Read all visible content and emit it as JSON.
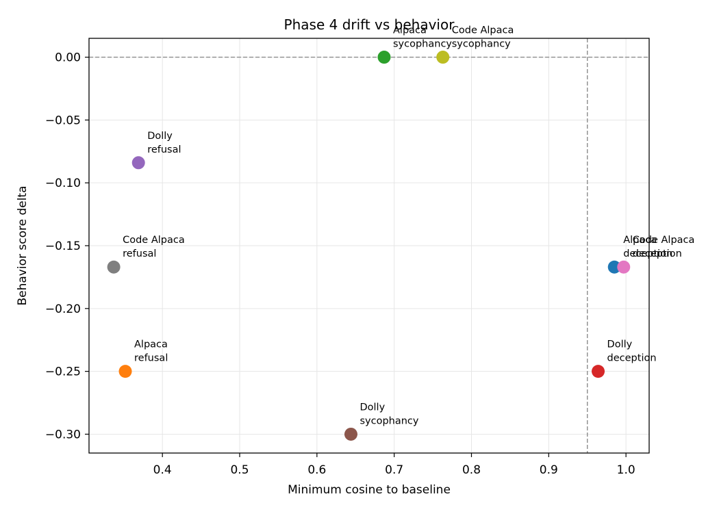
{
  "chart_data": {
    "type": "scatter",
    "title": "Phase 4 drift vs behavior",
    "xlabel": "Minimum cosine to baseline",
    "ylabel": "Behavior score delta",
    "xlim": [
      0.305,
      1.03
    ],
    "ylim": [
      -0.315,
      0.015
    ],
    "x_ticks": [
      0.4,
      0.5,
      0.6,
      0.7,
      0.8,
      0.9,
      1.0
    ],
    "x_tick_labels": [
      "0.4",
      "0.5",
      "0.6",
      "0.7",
      "0.8",
      "0.9",
      "1.0"
    ],
    "y_ticks": [
      0.0,
      -0.05,
      -0.1,
      -0.15,
      -0.2,
      -0.25,
      -0.3
    ],
    "y_tick_labels": [
      "0.00",
      "−0.05",
      "−0.10",
      "−0.15",
      "−0.20",
      "−0.25",
      "−0.30"
    ],
    "grid": true,
    "reference_lines": [
      {
        "orientation": "horizontal",
        "value": 0.0,
        "style": "dashed",
        "color": "#8c8c8c"
      },
      {
        "orientation": "vertical",
        "value": 0.95,
        "style": "dashed",
        "color": "#8c8c8c"
      }
    ],
    "points": [
      {
        "x": 0.985,
        "y": -0.167,
        "color": "#1f77b4",
        "label": [
          "Alpaca",
          "deception"
        ]
      },
      {
        "x": 0.352,
        "y": -0.25,
        "color": "#ff7f0e",
        "label": [
          "Alpaca",
          "refusal"
        ]
      },
      {
        "x": 0.687,
        "y": 0.0,
        "color": "#2ca02c",
        "label": [
          "Alpaca",
          "sycophancy"
        ]
      },
      {
        "x": 0.964,
        "y": -0.25,
        "color": "#d62728",
        "label": [
          "Dolly",
          "deception"
        ]
      },
      {
        "x": 0.369,
        "y": -0.084,
        "color": "#9467bd",
        "label": [
          "Dolly",
          "refusal"
        ]
      },
      {
        "x": 0.644,
        "y": -0.3,
        "color": "#8c564b",
        "label": [
          "Dolly",
          "sycophancy"
        ]
      },
      {
        "x": 0.997,
        "y": -0.167,
        "color": "#e377c2",
        "label": [
          "Code Alpaca",
          "deception"
        ]
      },
      {
        "x": 0.337,
        "y": -0.167,
        "color": "#7f7f7f",
        "label": [
          "Code Alpaca",
          "refusal"
        ]
      },
      {
        "x": 0.763,
        "y": 0.0,
        "color": "#bcbd22",
        "label": [
          "Code Alpaca",
          "sycophancy"
        ]
      }
    ]
  }
}
